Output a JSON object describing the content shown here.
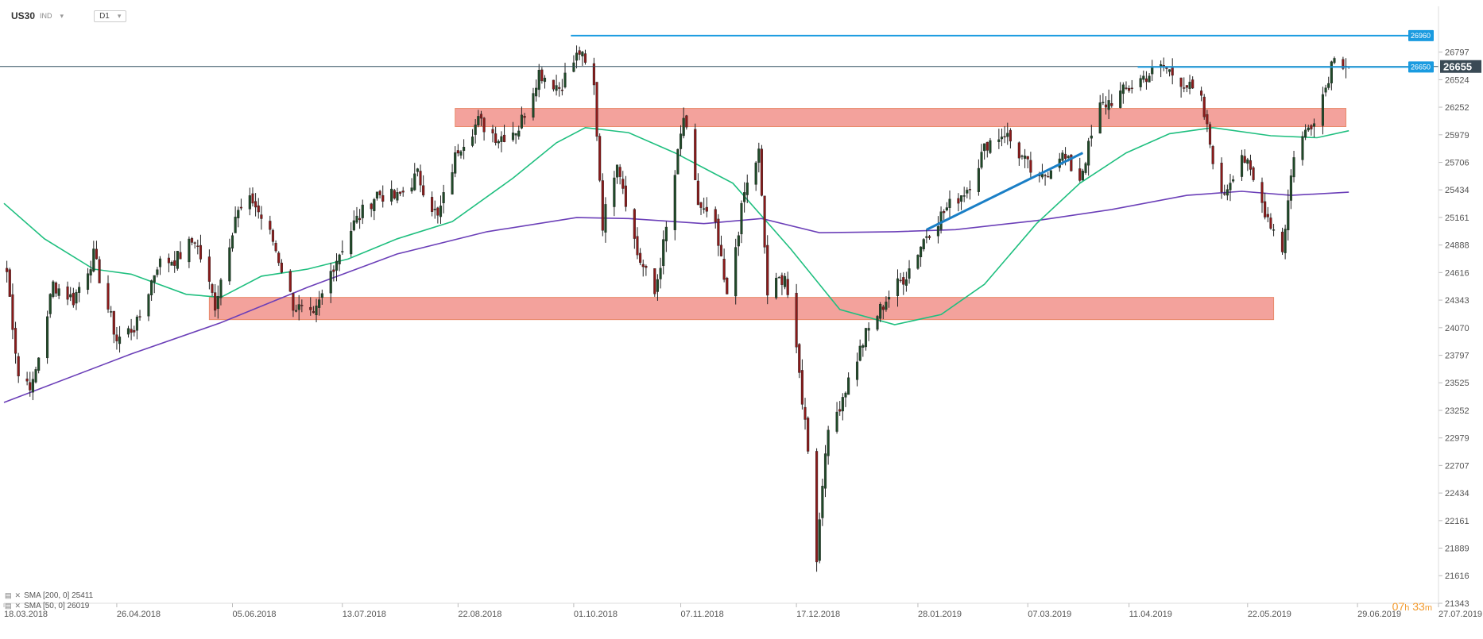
{
  "header": {
    "symbol": "US30",
    "market": "IND",
    "timeframe": "D1"
  },
  "legend": {
    "sma200": "SMA [200, 0] 25411",
    "sma50": "SMA [50, 0] 26019"
  },
  "countdown": {
    "hours": "07",
    "h_unit": "h",
    "minutes": "33",
    "m_unit": "m"
  },
  "colors": {
    "bull": "#1f4a28",
    "bear": "#8b1a1a",
    "sma50": "#1fbf7f",
    "sma200": "#6b3fb8",
    "zone": "#f08880",
    "level_line": "#1a9be0",
    "current_line": "#2f4f5f",
    "current_label_bg": "#3a4a55"
  },
  "chart_data": {
    "type": "candlestick",
    "title": "US30",
    "y_ticks": [
      26797,
      26524,
      26252,
      25979,
      25706,
      25434,
      25161,
      24888,
      24616,
      24343,
      24070,
      23797,
      23525,
      23252,
      22979,
      22707,
      22434,
      22161,
      21889,
      21616,
      21343
    ],
    "ylim": [
      21343,
      27250
    ],
    "x_ticks": [
      "18.03.2018",
      "26.04.2018",
      "05.06.2018",
      "13.07.2018",
      "22.08.2018",
      "01.10.2018",
      "07.11.2018",
      "17.12.2018",
      "28.01.2019",
      "07.03.2019",
      "11.04.2019",
      "22.05.2019",
      "29.06.2019",
      "27.07.2019"
    ],
    "x_tick_dates": [
      "2018-03-18",
      "2018-04-26",
      "2018-06-05",
      "2018-07-13",
      "2018-08-22",
      "2018-10-01",
      "2018-11-07",
      "2018-12-17",
      "2019-01-28",
      "2019-03-07",
      "2019-04-11",
      "2019-05-22",
      "2019-06-29",
      "2019-07-27"
    ],
    "xlim": [
      "2018-03-18",
      "2019-07-27"
    ],
    "current_price": 26655,
    "current_price_label": "26655",
    "levels": [
      {
        "price": 26960,
        "label": "26960",
        "start": "2018-09-30"
      },
      {
        "price": 26650,
        "label": "26650",
        "start": "2019-04-14"
      }
    ],
    "zones": [
      {
        "start": "2018-08-21",
        "end": "2019-06-25",
        "low": 26060,
        "high": 26240
      },
      {
        "start": "2018-05-28",
        "end": "2019-05-31",
        "low": 24150,
        "high": 24370
      }
    ],
    "trendline": {
      "start": [
        "2019-01-31",
        25040
      ],
      "end": [
        "2019-03-26",
        25800
      ]
    },
    "anchors": [
      [
        "2018-03-18",
        24880
      ],
      [
        "2018-03-23",
        23600
      ],
      [
        "2018-03-28",
        23500
      ],
      [
        "2018-04-04",
        24500
      ],
      [
        "2018-04-11",
        24350
      ],
      [
        "2018-04-18",
        24780
      ],
      [
        "2018-04-26",
        23950
      ],
      [
        "2018-05-03",
        24100
      ],
      [
        "2018-05-10",
        24700
      ],
      [
        "2018-05-17",
        24760
      ],
      [
        "2018-05-23",
        24950
      ],
      [
        "2018-05-30",
        24300
      ],
      [
        "2018-06-06",
        25180
      ],
      [
        "2018-06-12",
        25330
      ],
      [
        "2018-06-19",
        24930
      ],
      [
        "2018-06-26",
        24300
      ],
      [
        "2018-07-03",
        24150
      ],
      [
        "2018-07-10",
        24700
      ],
      [
        "2018-07-17",
        25100
      ],
      [
        "2018-07-25",
        25400
      ],
      [
        "2018-08-01",
        25350
      ],
      [
        "2018-08-08",
        25580
      ],
      [
        "2018-08-15",
        25150
      ],
      [
        "2018-08-22",
        25850
      ],
      [
        "2018-08-29",
        26110
      ],
      [
        "2018-09-05",
        25950
      ],
      [
        "2018-09-12",
        26050
      ],
      [
        "2018-09-19",
        26600
      ],
      [
        "2018-09-26",
        26450
      ],
      [
        "2018-10-03",
        26800
      ],
      [
        "2018-10-08",
        26450
      ],
      [
        "2018-10-11",
        25100
      ],
      [
        "2018-10-16",
        25750
      ],
      [
        "2018-10-23",
        24800
      ],
      [
        "2018-10-29",
        24400
      ],
      [
        "2018-11-03",
        25200
      ],
      [
        "2018-11-08",
        26150
      ],
      [
        "2018-11-13",
        25300
      ],
      [
        "2018-11-19",
        25050
      ],
      [
        "2018-11-23",
        24350
      ],
      [
        "2018-11-29",
        25400
      ],
      [
        "2018-12-04",
        25800
      ],
      [
        "2018-12-07",
        24400
      ],
      [
        "2018-12-13",
        24600
      ],
      [
        "2018-12-18",
        23600
      ],
      [
        "2018-12-21",
        22900
      ],
      [
        "2018-12-24",
        21800
      ],
      [
        "2018-12-27",
        22900
      ],
      [
        "2019-01-02",
        23400
      ],
      [
        "2019-01-10",
        24000
      ],
      [
        "2019-01-17",
        24350
      ],
      [
        "2019-01-24",
        24600
      ],
      [
        "2019-01-31",
        25000
      ],
      [
        "2019-02-07",
        25250
      ],
      [
        "2019-02-14",
        25450
      ],
      [
        "2019-02-21",
        25900
      ],
      [
        "2019-02-27",
        26000
      ],
      [
        "2019-03-05",
        25750
      ],
      [
        "2019-03-11",
        25500
      ],
      [
        "2019-03-18",
        25800
      ],
      [
        "2019-03-25",
        25550
      ],
      [
        "2019-04-01",
        26250
      ],
      [
        "2019-04-09",
        26400
      ],
      [
        "2019-04-16",
        26550
      ],
      [
        "2019-04-23",
        26650
      ],
      [
        "2019-04-30",
        26500
      ],
      [
        "2019-05-06",
        26300
      ],
      [
        "2019-05-13",
        25350
      ],
      [
        "2019-05-20",
        25800
      ],
      [
        "2019-05-27",
        25300
      ],
      [
        "2019-06-03",
        24850
      ],
      [
        "2019-06-07",
        25800
      ],
      [
        "2019-06-13",
        26100
      ],
      [
        "2019-06-18",
        26450
      ],
      [
        "2019-06-21",
        26800
      ],
      [
        "2019-06-24",
        26700
      ],
      [
        "2019-06-26",
        26655
      ]
    ],
    "series": [
      {
        "name": "SMA [200, 0]",
        "points": [
          [
            "2018-03-18",
            23330
          ],
          [
            "2018-05-01",
            23810
          ],
          [
            "2018-06-01",
            24120
          ],
          [
            "2018-07-01",
            24470
          ],
          [
            "2018-08-01",
            24800
          ],
          [
            "2018-09-01",
            25020
          ],
          [
            "2018-10-02",
            25160
          ],
          [
            "2018-10-20",
            25150
          ],
          [
            "2018-11-15",
            25100
          ],
          [
            "2018-12-05",
            25150
          ],
          [
            "2018-12-25",
            25010
          ],
          [
            "2019-01-20",
            25020
          ],
          [
            "2019-02-10",
            25040
          ],
          [
            "2019-03-10",
            25130
          ],
          [
            "2019-04-05",
            25240
          ],
          [
            "2019-05-01",
            25380
          ],
          [
            "2019-05-20",
            25420
          ],
          [
            "2019-06-06",
            25380
          ],
          [
            "2019-06-26",
            25411
          ]
        ]
      },
      {
        "name": "SMA [50, 0]",
        "points": [
          [
            "2018-03-18",
            25300
          ],
          [
            "2018-04-01",
            24950
          ],
          [
            "2018-04-18",
            24650
          ],
          [
            "2018-05-01",
            24600
          ],
          [
            "2018-05-20",
            24400
          ],
          [
            "2018-06-01",
            24370
          ],
          [
            "2018-06-15",
            24580
          ],
          [
            "2018-07-01",
            24650
          ],
          [
            "2018-07-15",
            24750
          ],
          [
            "2018-08-01",
            24950
          ],
          [
            "2018-08-20",
            25120
          ],
          [
            "2018-09-10",
            25550
          ],
          [
            "2018-09-25",
            25900
          ],
          [
            "2018-10-05",
            26050
          ],
          [
            "2018-10-20",
            26000
          ],
          [
            "2018-11-05",
            25800
          ],
          [
            "2018-11-25",
            25500
          ],
          [
            "2018-12-15",
            24850
          ],
          [
            "2019-01-01",
            24250
          ],
          [
            "2019-01-20",
            24100
          ],
          [
            "2019-02-05",
            24200
          ],
          [
            "2019-02-20",
            24500
          ],
          [
            "2019-03-10",
            25100
          ],
          [
            "2019-03-25",
            25500
          ],
          [
            "2019-04-10",
            25800
          ],
          [
            "2019-04-25",
            25990
          ],
          [
            "2019-05-10",
            26050
          ],
          [
            "2019-05-30",
            25970
          ],
          [
            "2019-06-15",
            25950
          ],
          [
            "2019-06-26",
            26019
          ]
        ]
      }
    ]
  }
}
